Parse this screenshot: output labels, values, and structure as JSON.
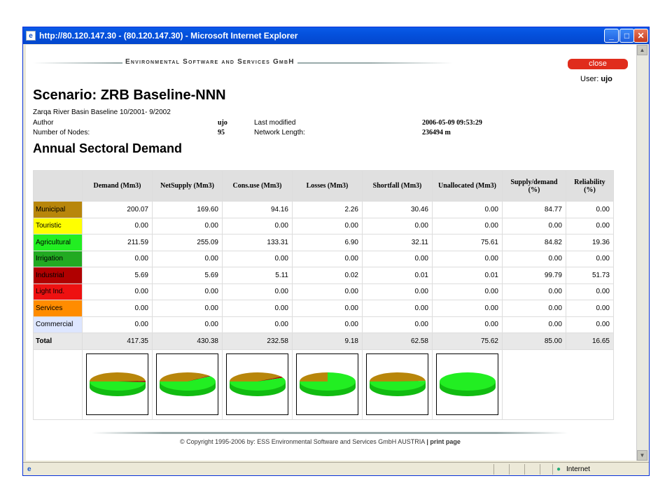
{
  "window": {
    "title": "http://80.120.147.30 - (80.120.147.30) - Microsoft Internet Explorer"
  },
  "banner": "Environmental Software and Services GmbH",
  "close_label": "close",
  "user": {
    "label": "User:",
    "name": "ujo"
  },
  "scenario": {
    "title": "Scenario: ZRB Baseline-NNN",
    "subtitle": "Zarqa River Basin Baseline 10/2001- 9/2002",
    "author_label": "Author",
    "author": "ujo",
    "last_modified_label": "Last modified",
    "last_modified": "2006-05-09 09:53:29",
    "nodes_label": "Number of Nodes:",
    "nodes": "95",
    "length_label": "Network Length:",
    "length": "236494 m"
  },
  "section_title": "Annual Sectoral Demand",
  "table": {
    "headers": [
      "",
      "Demand (Mm3)",
      "NetSupply (Mm3)",
      "Cons.use (Mm3)",
      "Losses (Mm3)",
      "Shortfall (Mm3)",
      "Unallocated (Mm3)",
      "Supply/demand (%)",
      "Reliability (%)"
    ],
    "rows": [
      {
        "label": "Municipal",
        "color": "#b8860b",
        "text": "#000",
        "cells": [
          "200.07",
          "169.60",
          "94.16",
          "2.26",
          "30.46",
          "0.00",
          "84.77",
          "0.00"
        ]
      },
      {
        "label": "Touristic",
        "color": "#ffff00",
        "text": "#000",
        "cells": [
          "0.00",
          "0.00",
          "0.00",
          "0.00",
          "0.00",
          "0.00",
          "0.00",
          "0.00"
        ]
      },
      {
        "label": "Agricultural",
        "color": "#22ee22",
        "text": "#000",
        "cells": [
          "211.59",
          "255.09",
          "133.31",
          "6.90",
          "32.11",
          "75.61",
          "84.82",
          "19.36"
        ]
      },
      {
        "label": "Irrigation",
        "color": "#22aa22",
        "text": "#000",
        "cells": [
          "0.00",
          "0.00",
          "0.00",
          "0.00",
          "0.00",
          "0.00",
          "0.00",
          "0.00"
        ]
      },
      {
        "label": "Industrial",
        "color": "#b00000",
        "text": "#000",
        "cells": [
          "5.69",
          "5.69",
          "5.11",
          "0.02",
          "0.01",
          "0.01",
          "99.79",
          "51.73"
        ]
      },
      {
        "label": "Light Ind.",
        "color": "#ee1111",
        "text": "#000",
        "cells": [
          "0.00",
          "0.00",
          "0.00",
          "0.00",
          "0.00",
          "0.00",
          "0.00",
          "0.00"
        ]
      },
      {
        "label": "Services",
        "color": "#ff8c00",
        "text": "#000",
        "cells": [
          "0.00",
          "0.00",
          "0.00",
          "0.00",
          "0.00",
          "0.00",
          "0.00",
          "0.00"
        ]
      },
      {
        "label": "Commercial",
        "color": "#dde6ff",
        "text": "#000",
        "cells": [
          "0.00",
          "0.00",
          "0.00",
          "0.00",
          "0.00",
          "0.00",
          "0.00",
          "0.00"
        ]
      }
    ],
    "total": {
      "label": "Total",
      "cells": [
        "417.35",
        "430.38",
        "232.58",
        "9.18",
        "62.58",
        "75.62",
        "85.00",
        "16.65"
      ]
    },
    "pie_fractions": [
      {
        "green": 0.49,
        "brown": 0.49,
        "red": 0.02
      },
      {
        "green": 0.6,
        "brown": 0.39,
        "red": 0.01
      },
      {
        "green": 0.57,
        "brown": 0.41,
        "red": 0.02
      },
      {
        "green": 0.75,
        "brown": 0.25,
        "red": 0.0
      },
      {
        "green": 0.51,
        "brown": 0.49,
        "red": 0.0
      },
      {
        "green": 1.0,
        "brown": 0.0,
        "red": 0.0
      }
    ]
  },
  "footer": {
    "copyright": "© Copyright 1995-2006 by:  ESS  Environmental Software and Services GmbH AUSTRIA",
    "print": "print page"
  },
  "statusbar": {
    "zone": "Internet"
  }
}
